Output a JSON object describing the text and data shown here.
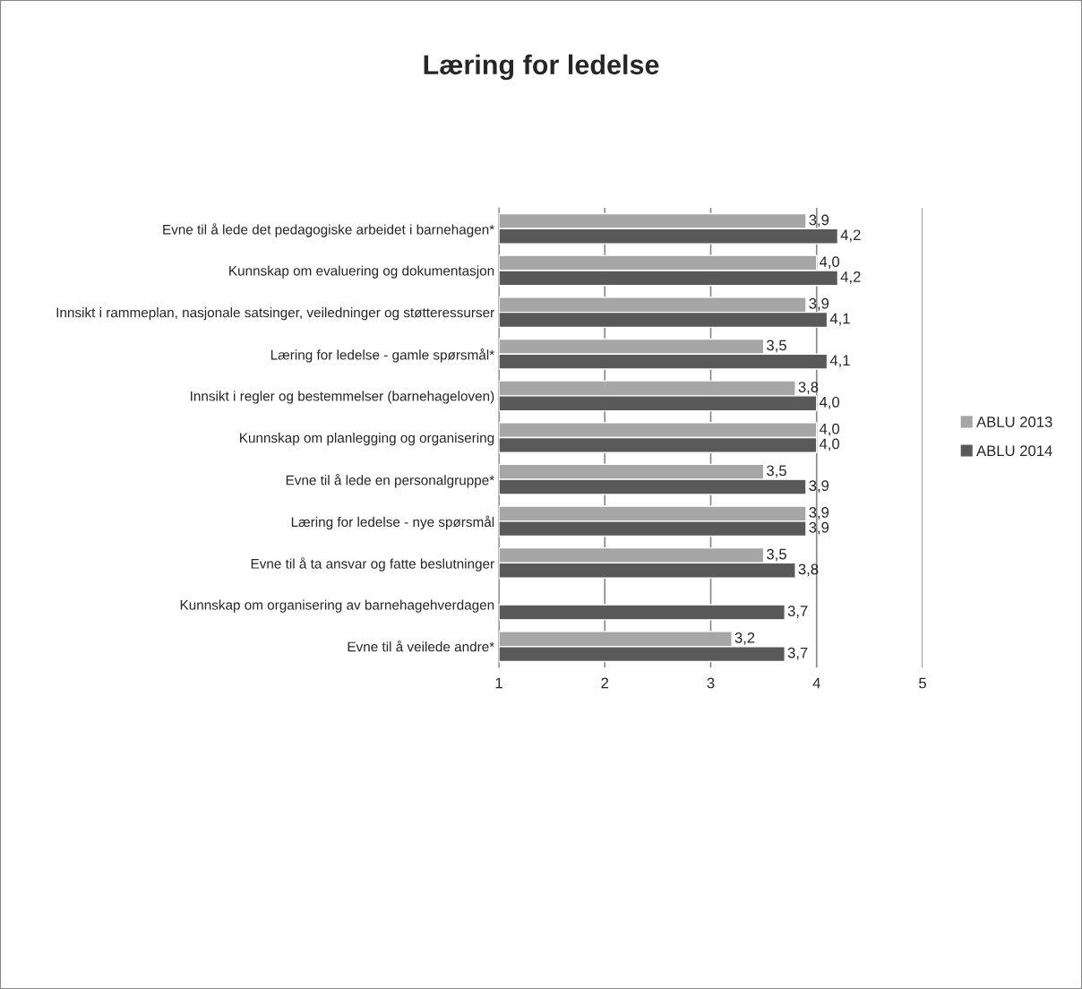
{
  "chart_data": {
    "type": "bar",
    "orientation": "horizontal",
    "title": "Læring for ledelse",
    "categories": [
      "Evne til å lede det pedagogiske arbeidet i barnehagen*",
      "Kunnskap om evaluering og dokumentasjon",
      "Innsikt i rammeplan, nasjonale satsinger, veiledninger og støtteressurser",
      "Læring for ledelse - gamle spørsmål*",
      "Innsikt i regler og bestemmelser (barnehageloven)",
      "Kunnskap om planlegging og organisering",
      "Evne til å lede en personalgruppe*",
      "Læring for ledelse - nye spørsmål",
      "Evne til å ta ansvar og fatte beslutninger",
      "Kunnskap om organisering av barnehagehverdagen",
      "Evne til å veilede andre*"
    ],
    "series": [
      {
        "name": "ABLU 2013",
        "color": "#a6a6a6",
        "values": [
          3.9,
          4.0,
          3.9,
          3.5,
          3.8,
          4.0,
          3.5,
          3.9,
          3.5,
          null,
          3.2
        ],
        "value_labels": [
          "3,9",
          "4,0",
          "3,9",
          "3,5",
          "3,8",
          "4,0",
          "3,5",
          "3,9",
          "3,5",
          null,
          "3,2"
        ]
      },
      {
        "name": "ABLU 2014",
        "color": "#595959",
        "values": [
          4.2,
          4.2,
          4.1,
          4.1,
          4.0,
          4.0,
          3.9,
          3.9,
          3.8,
          3.7,
          3.7
        ],
        "value_labels": [
          "4,2",
          "4,2",
          "4,1",
          "4,1",
          "4,0",
          "4,0",
          "3,9",
          "3,9",
          "3,8",
          "3,7",
          "3,7"
        ]
      }
    ],
    "xlim": [
      1,
      5
    ],
    "xticks": [
      1,
      2,
      3,
      4,
      5
    ],
    "grid": "x",
    "legend": "right"
  }
}
